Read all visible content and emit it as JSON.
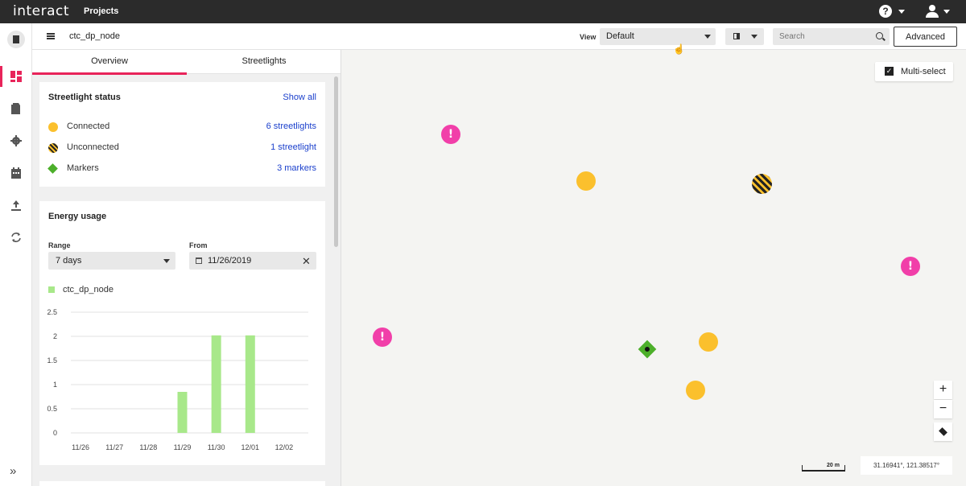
{
  "topbar": {
    "logo": "interact",
    "projects": "Projects",
    "help_glyph": "?"
  },
  "subheader": {
    "project_name": "ctc_dp_node",
    "view_label": "View",
    "view_value": "Default",
    "search_placeholder": "Search",
    "advanced_label": "Advanced"
  },
  "rail": {
    "icons": [
      "project-icon",
      "dashboard-icon",
      "document-icon",
      "settings-icon",
      "calendar-icon",
      "upload-icon",
      "sync-icon"
    ],
    "expand_glyph": "»"
  },
  "tabs": [
    "Overview",
    "Streetlights"
  ],
  "status_card": {
    "title": "Streetlight status",
    "show_all": "Show all",
    "rows": [
      {
        "label": "Connected",
        "link": "6 streetlights"
      },
      {
        "label": "Unconnected",
        "link": "1 streetlight"
      },
      {
        "label": "Markers",
        "link": "3 markers"
      }
    ]
  },
  "energy_card": {
    "title": "Energy usage",
    "range_label": "Range",
    "range_value": "7 days",
    "from_label": "From",
    "from_value": "11/26/2019",
    "clear_glyph": "✕"
  },
  "chart_data": {
    "type": "bar",
    "categories": [
      "11/26",
      "11/27",
      "11/28",
      "11/29",
      "11/30",
      "12/01",
      "12/02"
    ],
    "series": [
      {
        "name": "ctc_dp_node",
        "values": [
          0,
          0,
          0,
          0.85,
          2.02,
          2.02,
          0
        ]
      }
    ],
    "yticks": [
      "0",
      "0.5",
      "1",
      "1.5",
      "2",
      "2.5"
    ],
    "ylim": [
      0,
      2.5
    ],
    "grid": true,
    "legend": "top-left",
    "bar_color": "#a8e88a"
  },
  "map": {
    "multiselect_label": "Multi-select",
    "checkbox_glyph": "✓",
    "zoom_in": "+",
    "zoom_out": "−",
    "scale_label": "20 m",
    "coordinates": "31.16941°, 121.38517°",
    "alert_glyph": "!"
  },
  "colors": {
    "accent": "#e8245a",
    "link": "#1a3fcc",
    "connected": "#fbc02d",
    "alert": "#f13fa9",
    "marker": "#4caf2a"
  }
}
